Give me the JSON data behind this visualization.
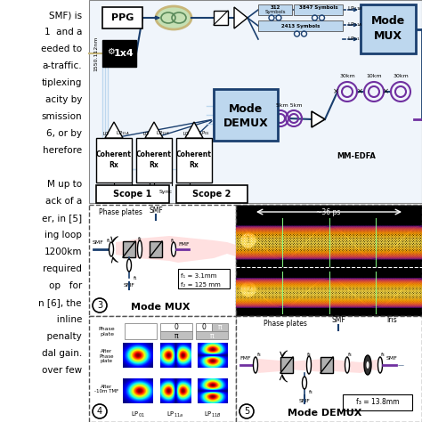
{
  "bg_color": "#ffffff",
  "fig_width": 4.74,
  "fig_height": 4.74,
  "dpi": 100,
  "left_texts": [
    [
      "SMF) is",
      0
    ],
    [
      "1  and a",
      0
    ],
    [
      "eeded to",
      0
    ],
    [
      "a-traffic.",
      0
    ],
    [
      "tiplexing",
      0
    ],
    [
      "acity by",
      0
    ],
    [
      "smission",
      0
    ],
    [
      "6, or by",
      0
    ],
    [
      "herefore",
      0
    ],
    [
      "",
      0
    ],
    [
      "M up to",
      0
    ],
    [
      "ack of a",
      0
    ],
    [
      "er, in [5]",
      0
    ],
    [
      "ing loop",
      0
    ],
    [
      "1200km",
      0
    ],
    [
      "required",
      0
    ],
    [
      "op   for",
      0
    ],
    [
      "n [6], the",
      0
    ],
    [
      "   inline",
      0
    ],
    [
      "  penalty",
      0
    ],
    [
      "dal gain.",
      0
    ],
    [
      "over few",
      0
    ]
  ],
  "dark_blue": "#1a3f6f",
  "med_blue": "#2e75b6",
  "purple": "#7030a0",
  "tan": "#c8b77a",
  "light_blue_fill": "#bdd7ee",
  "green_fill": "#c5e0b4"
}
